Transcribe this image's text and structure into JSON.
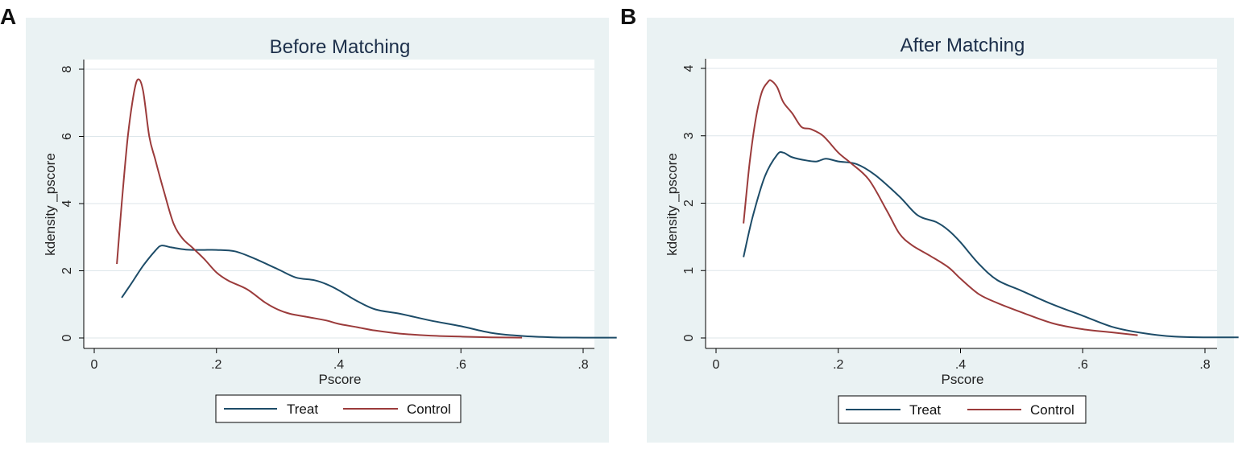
{
  "panel_labels": [
    "A",
    "B"
  ],
  "chart_data": [
    {
      "type": "line",
      "panel": "A",
      "title": "Before Matching",
      "xlabel": "Pscore",
      "ylabel": "kdensity _pscore",
      "xlim": [
        0,
        0.86
      ],
      "ylim": [
        0,
        8.5
      ],
      "xticks": [
        0,
        0.2,
        0.4,
        0.6,
        0.8
      ],
      "xtick_labels": [
        "0",
        ".2",
        ".4",
        ".6",
        ".8"
      ],
      "yticks": [
        0,
        2,
        4,
        6,
        8
      ],
      "ytick_labels": [
        "0",
        "2",
        "4",
        "6",
        "8"
      ],
      "grid": true,
      "legend": [
        "Treat",
        "Control"
      ],
      "legend_position": "bottom-center",
      "colors": {
        "plot_bg": "#ffffff",
        "panel_bg": "#eaf2f3",
        "grid": "#dde6ea",
        "axis": "#000000"
      },
      "series": [
        {
          "name": "Treat",
          "color": "#1d4c68",
          "x": [
            0.045,
            0.06,
            0.08,
            0.1,
            0.11,
            0.125,
            0.15,
            0.175,
            0.2,
            0.23,
            0.26,
            0.3,
            0.33,
            0.36,
            0.38,
            0.4,
            0.43,
            0.46,
            0.5,
            0.55,
            0.6,
            0.65,
            0.7,
            0.75,
            0.8,
            0.855
          ],
          "y": [
            1.2,
            1.6,
            2.15,
            2.6,
            2.75,
            2.7,
            2.63,
            2.62,
            2.62,
            2.58,
            2.38,
            2.05,
            1.8,
            1.72,
            1.6,
            1.42,
            1.1,
            0.85,
            0.72,
            0.52,
            0.35,
            0.15,
            0.06,
            0.02,
            0.01,
            0.01
          ]
        },
        {
          "name": "Control",
          "color": "#9b3b3b",
          "x": [
            0.037,
            0.045,
            0.055,
            0.065,
            0.072,
            0.08,
            0.09,
            0.1,
            0.115,
            0.13,
            0.145,
            0.16,
            0.18,
            0.2,
            0.22,
            0.25,
            0.28,
            0.3,
            0.32,
            0.35,
            0.38,
            0.4,
            0.43,
            0.46,
            0.5,
            0.55,
            0.6,
            0.65,
            0.7
          ],
          "y": [
            2.2,
            4.0,
            6.0,
            7.3,
            7.7,
            7.35,
            6.0,
            5.3,
            4.3,
            3.4,
            2.95,
            2.7,
            2.35,
            1.95,
            1.7,
            1.45,
            1.05,
            0.85,
            0.72,
            0.62,
            0.52,
            0.42,
            0.32,
            0.22,
            0.13,
            0.07,
            0.04,
            0.02,
            0.01
          ]
        }
      ]
    },
    {
      "type": "line",
      "panel": "B",
      "title": "After Matching",
      "xlabel": "Pscore",
      "ylabel": "kdensity _pscore",
      "xlim": [
        0,
        0.86
      ],
      "ylim": [
        0,
        4.2
      ],
      "xticks": [
        0,
        0.2,
        0.4,
        0.6,
        0.8
      ],
      "xtick_labels": [
        "0",
        ".2",
        ".4",
        ".6",
        ".8"
      ],
      "yticks": [
        0,
        1,
        2,
        3,
        4
      ],
      "ytick_labels": [
        "0",
        "1",
        "2",
        "3",
        "4"
      ],
      "grid": true,
      "legend": [
        "Treat",
        "Control"
      ],
      "legend_position": "bottom-center",
      "colors": {
        "plot_bg": "#ffffff",
        "panel_bg": "#eaf2f3",
        "grid": "#dde6ea",
        "axis": "#000000"
      },
      "series": [
        {
          "name": "Treat",
          "color": "#1d4c68",
          "x": [
            0.045,
            0.06,
            0.08,
            0.1,
            0.11,
            0.125,
            0.15,
            0.165,
            0.18,
            0.2,
            0.23,
            0.26,
            0.3,
            0.33,
            0.36,
            0.38,
            0.4,
            0.43,
            0.46,
            0.5,
            0.55,
            0.6,
            0.65,
            0.7,
            0.75,
            0.8,
            0.855
          ],
          "y": [
            1.2,
            1.8,
            2.4,
            2.72,
            2.75,
            2.68,
            2.63,
            2.62,
            2.66,
            2.62,
            2.58,
            2.42,
            2.1,
            1.82,
            1.72,
            1.6,
            1.42,
            1.1,
            0.86,
            0.7,
            0.5,
            0.33,
            0.16,
            0.07,
            0.02,
            0.01,
            0.01
          ]
        },
        {
          "name": "Control",
          "color": "#9b3b3b",
          "x": [
            0.045,
            0.055,
            0.065,
            0.075,
            0.085,
            0.09,
            0.1,
            0.11,
            0.125,
            0.14,
            0.155,
            0.175,
            0.2,
            0.22,
            0.25,
            0.28,
            0.3,
            0.32,
            0.35,
            0.38,
            0.4,
            0.43,
            0.46,
            0.5,
            0.55,
            0.6,
            0.65,
            0.69
          ],
          "y": [
            1.7,
            2.6,
            3.25,
            3.65,
            3.8,
            3.82,
            3.72,
            3.5,
            3.33,
            3.13,
            3.1,
            3.0,
            2.75,
            2.6,
            2.35,
            1.88,
            1.55,
            1.38,
            1.22,
            1.05,
            0.88,
            0.65,
            0.52,
            0.38,
            0.22,
            0.13,
            0.08,
            0.04
          ]
        }
      ]
    }
  ]
}
